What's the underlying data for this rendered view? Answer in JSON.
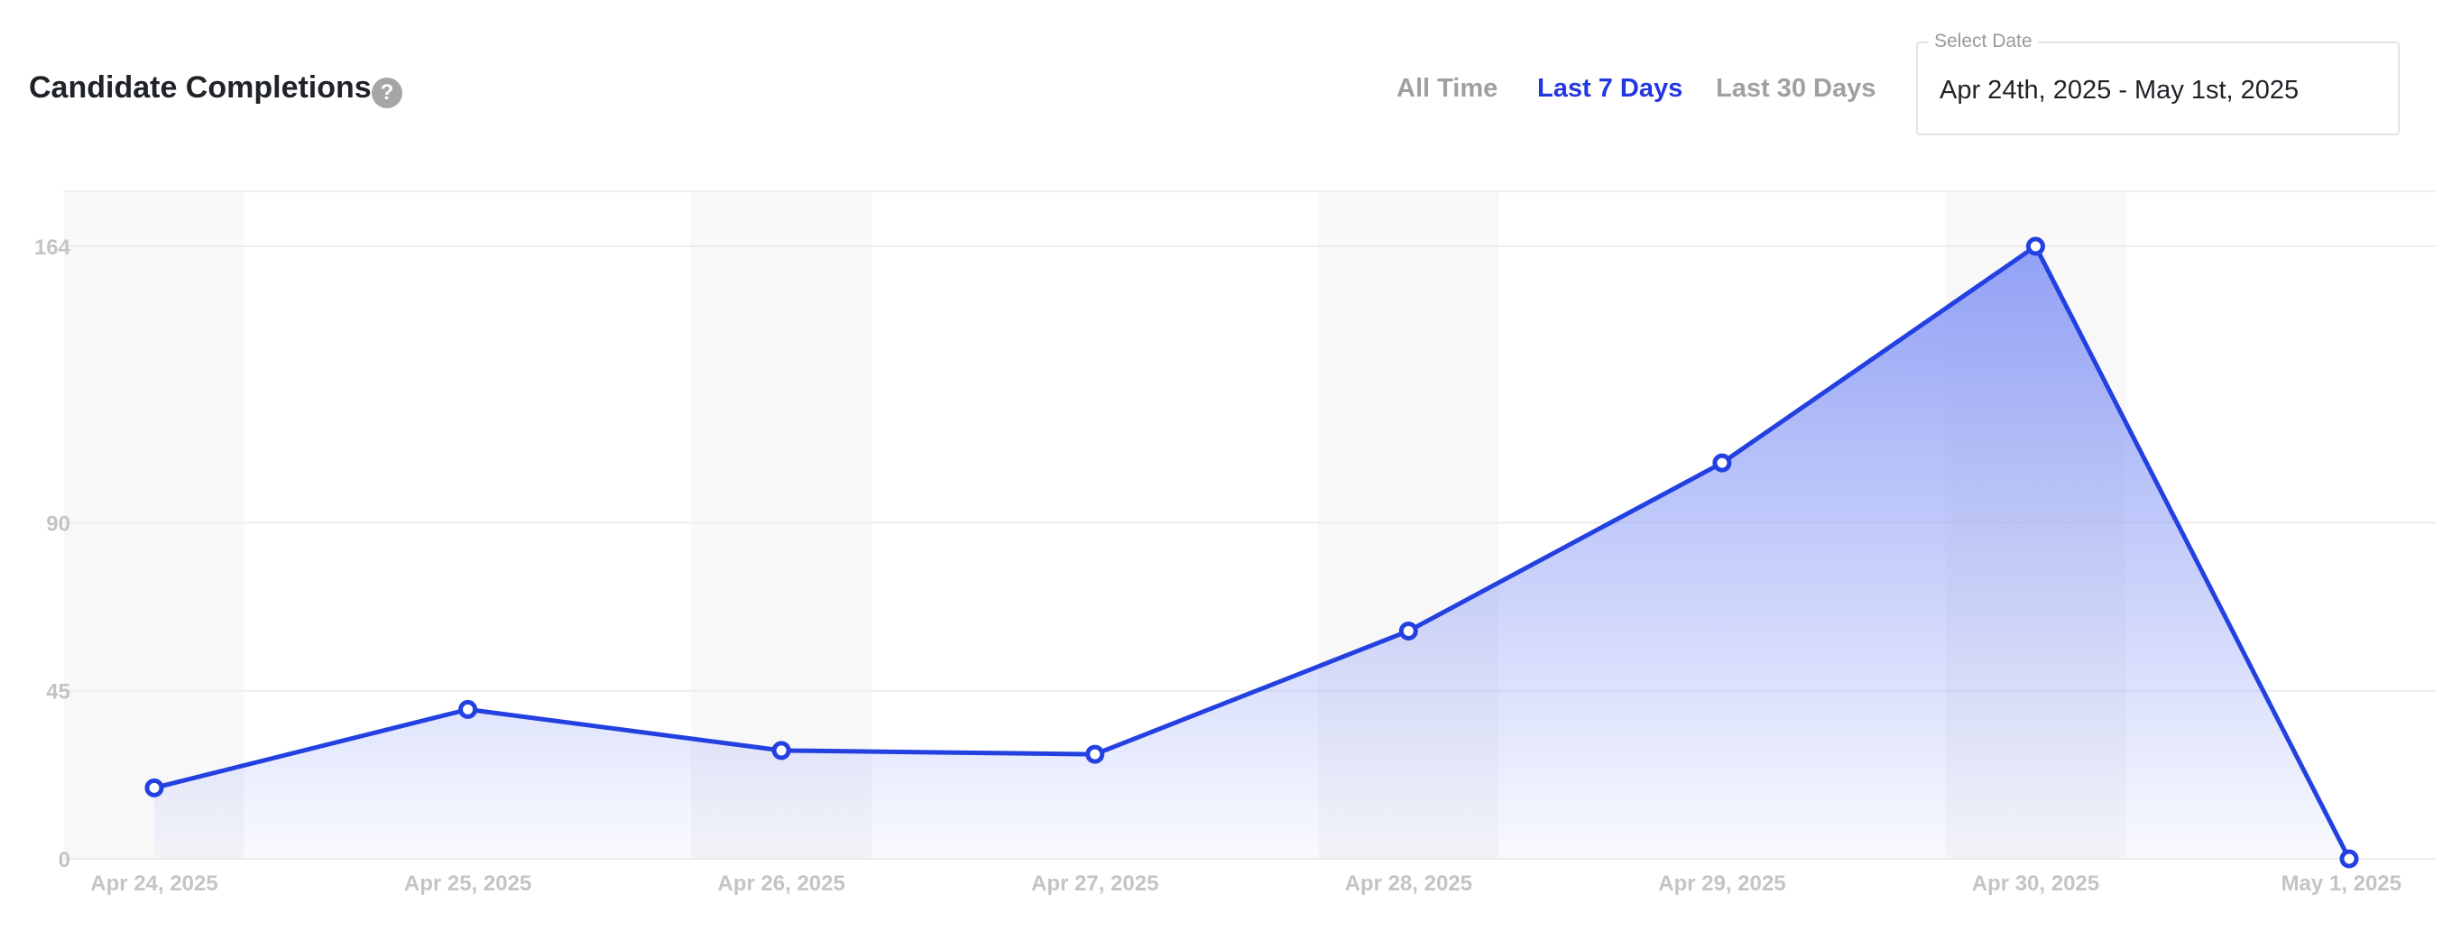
{
  "header": {
    "title": "Candidate Completions",
    "help_icon": "question-mark",
    "ranges": [
      "All Time",
      "Last 7 Days",
      "Last 30 Days"
    ],
    "active_range": "Last 7 Days",
    "date_picker": {
      "label": "Select Date",
      "value": "Apr 24th, 2025 - May 1st, 2025"
    }
  },
  "colors": {
    "accent": "#2338e0",
    "line": "#2340e0",
    "fill": "#8c9cf5",
    "inactive": "#a0a0a0"
  },
  "chart_data": {
    "type": "area",
    "categories": [
      "Apr 24, 2025",
      "Apr 25, 2025",
      "Apr 26, 2025",
      "Apr 27, 2025",
      "Apr 28, 2025",
      "Apr 29, 2025",
      "Apr 30, 2025",
      "May 1, 2025"
    ],
    "values": [
      19,
      40,
      29,
      28,
      61,
      106,
      164,
      0
    ],
    "yticks": [
      0,
      45,
      90,
      164
    ],
    "ylim": [
      0,
      164
    ],
    "grid": true,
    "alternating_column_bands": true
  }
}
